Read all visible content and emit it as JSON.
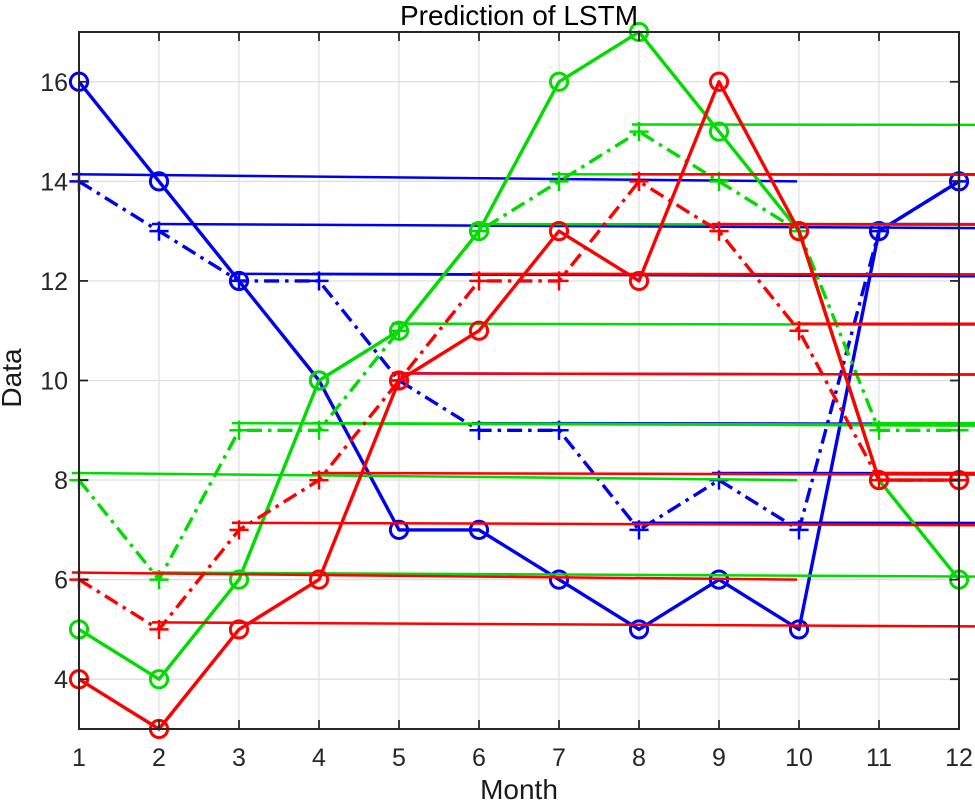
{
  "chart_data": {
    "type": "line",
    "title": "Prediction of LSTM",
    "xlabel": "Month",
    "ylabel": "Data",
    "xlim": [
      1,
      12
    ],
    "ylim": [
      3,
      17
    ],
    "xticks": [
      1,
      2,
      3,
      4,
      5,
      6,
      7,
      8,
      9,
      10,
      11,
      12
    ],
    "yticks": [
      4,
      6,
      8,
      10,
      12,
      14,
      16
    ],
    "grid": true,
    "legend": "none",
    "x": [
      1,
      2,
      3,
      4,
      5,
      6,
      7,
      8,
      9,
      10,
      11,
      12
    ],
    "series": [
      {
        "name": "blue-solid-circle",
        "color": "#0000F0",
        "line": "solid",
        "marker": "circle",
        "values": [
          16,
          14,
          12,
          10,
          7,
          7,
          6,
          5,
          6,
          5,
          13,
          14
        ]
      },
      {
        "name": "blue-dashdot-asterisk",
        "color": "#0000F0",
        "line": "dashdot",
        "marker": "asterisk",
        "values": [
          14,
          13,
          12,
          12,
          10,
          9,
          9,
          7,
          8,
          7,
          13,
          14
        ]
      },
      {
        "name": "green-solid-circle",
        "color": "#00DC00",
        "line": "solid",
        "marker": "circle",
        "values": [
          5,
          4,
          6,
          10,
          11,
          13,
          16,
          17,
          15,
          13,
          8,
          6
        ]
      },
      {
        "name": "green-dashdot-asterisk",
        "color": "#00DC00",
        "line": "dashdot",
        "marker": "asterisk",
        "values": [
          8,
          6,
          9,
          9,
          11,
          13,
          14,
          15,
          14,
          13,
          9,
          9
        ]
      },
      {
        "name": "red-solid-circle",
        "color": "#FF0000",
        "line": "solid",
        "marker": "circle",
        "values": [
          4,
          3,
          5,
          6,
          10,
          11,
          13,
          12,
          16,
          13,
          8,
          8
        ]
      },
      {
        "name": "red-dashdot-asterisk",
        "color": "#FF0000",
        "line": "dashdot",
        "marker": "asterisk",
        "values": [
          6,
          5,
          7,
          8,
          10,
          12,
          12,
          14,
          13,
          11,
          8,
          8
        ]
      }
    ],
    "style": {
      "grid_color": "#DEDEDE",
      "axis_color": "#262626",
      "tick_label_color": "#262626",
      "background": "#FFFFFF"
    }
  }
}
